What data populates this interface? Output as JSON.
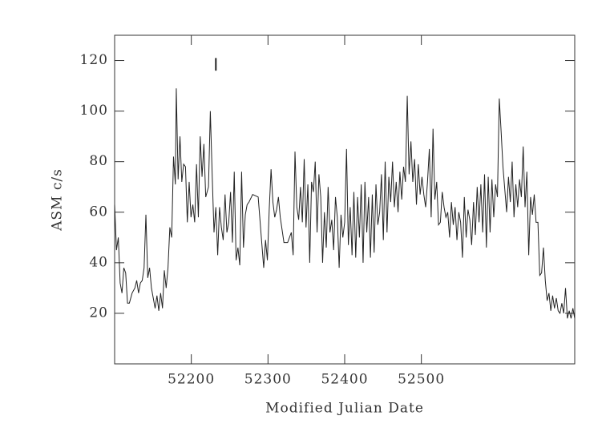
{
  "chart_data": {
    "type": "line",
    "xlabel": "Modified Julian Date",
    "ylabel": "ASM c/s",
    "xlim": [
      52100,
      52700
    ],
    "ylim": [
      0,
      130
    ],
    "xticks": [
      52200,
      52300,
      52400,
      52500
    ],
    "yticks": [
      20,
      40,
      60,
      80,
      100,
      120
    ],
    "color": "#222222",
    "marker": {
      "x": 52232,
      "low": 116,
      "high": 121
    },
    "x": [
      52100,
      52102.4,
      52104.8,
      52107.2,
      52109.6,
      52112,
      52114.4,
      52116.8,
      52119.2,
      52122.8,
      52126.4,
      52128.8,
      52131.2,
      52133.6,
      52136,
      52138.4,
      52140.8,
      52143.2,
      52145.6,
      52148,
      52150.4,
      52152.8,
      52155.2,
      52157.6,
      52160,
      52162.4,
      52164.8,
      52167.2,
      52169.6,
      52172,
      52174.4,
      52176.8,
      52179.2,
      52180.4,
      52182.8,
      52185.2,
      52187.6,
      52190,
      52192.4,
      52194.8,
      52197.2,
      52199.6,
      52202,
      52204.4,
      52206.8,
      52209.2,
      52211.6,
      52214,
      52216.4,
      52218.8,
      52222.4,
      52224.8,
      52227.2,
      52229.6,
      52232,
      52234.4,
      52236.8,
      52239.2,
      52241.6,
      52244,
      52246.4,
      52248.8,
      52251.2,
      52253.6,
      52256,
      52258.4,
      52260.8,
      52263.2,
      52265.6,
      52268,
      52270.4,
      52272.8,
      52275.2,
      52280,
      52287.2,
      52294.4,
      52296.8,
      52299.2,
      52301.6,
      52304,
      52306.4,
      52308.8,
      52311.2,
      52313.6,
      52316,
      52320.8,
      52325.6,
      52330.4,
      52332.8,
      52335.2,
      52337.6,
      52340,
      52342.4,
      52344.8,
      52347.2,
      52349.6,
      52352,
      52354.4,
      52356.8,
      52359.2,
      52361.6,
      52364,
      52366.4,
      52368.8,
      52371.2,
      52373.6,
      52376,
      52378.4,
      52380.8,
      52383.2,
      52385.6,
      52388,
      52390.4,
      52392.8,
      52395.2,
      52397.6,
      52400,
      52402.4,
      52404.8,
      52407.2,
      52409.6,
      52412,
      52414.4,
      52416.8,
      52419.2,
      52421.6,
      52424,
      52426.4,
      52428.8,
      52431.2,
      52433.6,
      52436,
      52438.4,
      52440.8,
      52443.2,
      52445.6,
      52448,
      52450.4,
      52452.8,
      52455.2,
      52457.6,
      52460,
      52462.4,
      52464.8,
      52467.2,
      52469.6,
      52472,
      52474.4,
      52476.8,
      52479.2,
      52481.6,
      52484,
      52486.4,
      52488.8,
      52491.2,
      52493.6,
      52496,
      52498.4,
      52500.8,
      52503.2,
      52505.6,
      52508,
      52510.4,
      52512.8,
      52515.2,
      52517.6,
      52520,
      52522.4,
      52524.8,
      52527.2,
      52529.6,
      52532,
      52534.4,
      52536.8,
      52539.2,
      52541.6,
      52544,
      52546.4,
      52548.8,
      52551.2,
      52553.6,
      52556,
      52558.4,
      52560.8,
      52563.2,
      52565.6,
      52568,
      52570.4,
      52572.8,
      52575.2,
      52577.6,
      52580,
      52582.4,
      52584.8,
      52587.2,
      52589.6,
      52592,
      52594.4,
      52596.8,
      52599.2,
      52601.6,
      52604,
      52606.4,
      52608.8,
      52611.2,
      52613.6,
      52616,
      52618.4,
      52620.8,
      52623.2,
      52625.6,
      52628,
      52630.4,
      52632.8,
      52635.2,
      52637.6,
      52640,
      52642.4,
      52644.8,
      52647.2,
      52649.6,
      52652,
      52654.4,
      52656.8,
      52659.2,
      52661.6,
      52664,
      52666.4,
      52668.8,
      52671.2,
      52673.6,
      52676,
      52678.4,
      52680.8,
      52683.2,
      52685.6,
      52688,
      52690.4,
      52692.8,
      52695.2,
      52697.6,
      52700
    ],
    "values": [
      63,
      45,
      50,
      32,
      28,
      38,
      36,
      24,
      24,
      28,
      30,
      33,
      28,
      32,
      33,
      38,
      59,
      34,
      38,
      30,
      26,
      22,
      27,
      21,
      28,
      22,
      37,
      30,
      38,
      54,
      50,
      82,
      71,
      109,
      73,
      90,
      72,
      79,
      78,
      56,
      72,
      58,
      63,
      56,
      79,
      58,
      90,
      74,
      87,
      66,
      70,
      100,
      75,
      52,
      62,
      43,
      62,
      54,
      49,
      67,
      52,
      56,
      68,
      48,
      76,
      41,
      46,
      39,
      76,
      46,
      59,
      63,
      64,
      67,
      66,
      38,
      49,
      41,
      61,
      77,
      64,
      58,
      61,
      66,
      58,
      48,
      48,
      52,
      43,
      84,
      62,
      57,
      70,
      56,
      81,
      54,
      71,
      40,
      72,
      68,
      80,
      52,
      75,
      66,
      40,
      60,
      46,
      70,
      52,
      57,
      45,
      66,
      58,
      38,
      59,
      50,
      56,
      85,
      47,
      62,
      43,
      68,
      42,
      66,
      50,
      71,
      40,
      72,
      52,
      66,
      42,
      67,
      44,
      71,
      55,
      60,
      75,
      49,
      80,
      52,
      74,
      64,
      80,
      62,
      72,
      60,
      76,
      65,
      78,
      72,
      106,
      75,
      88,
      72,
      81,
      63,
      79,
      67,
      74,
      67,
      62,
      72,
      85,
      58,
      93,
      65,
      72,
      55,
      56,
      68,
      62,
      58,
      60,
      50,
      64,
      55,
      62,
      49,
      60,
      56,
      42,
      66,
      50,
      61,
      57,
      47,
      64,
      51,
      70,
      56,
      71,
      52,
      75,
      46,
      74,
      52,
      73,
      58,
      71,
      66,
      105,
      92,
      78,
      69,
      60,
      74,
      64,
      80,
      58,
      71,
      62,
      73,
      66,
      86,
      62,
      76,
      43,
      66,
      59,
      67,
      56,
      56,
      35,
      36,
      46,
      33,
      25,
      28,
      21,
      27,
      22,
      26,
      21,
      20,
      24,
      20,
      30,
      18,
      21,
      18,
      22,
      18
    ]
  }
}
